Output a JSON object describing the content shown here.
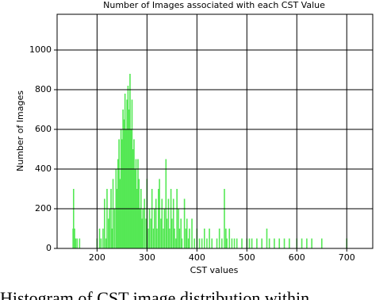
{
  "chart_data": {
    "type": "bar",
    "title": "Number of Images associated with each CST Value",
    "x_label": "CST values",
    "y_label": "Number of Images",
    "caption": "Histogram of CST image distribution within",
    "color": "#55e855",
    "grid": true,
    "x": [
      152,
      153,
      155,
      157,
      160,
      165,
      200,
      205,
      208,
      212,
      215,
      218,
      220,
      223,
      225,
      228,
      230,
      232,
      235,
      238,
      240,
      242,
      244,
      246,
      248,
      250,
      252,
      254,
      256,
      258,
      260,
      262,
      264,
      266,
      268,
      270,
      272,
      274,
      276,
      278,
      280,
      282,
      284,
      286,
      288,
      290,
      292,
      295,
      298,
      300,
      303,
      305,
      308,
      310,
      313,
      315,
      318,
      320,
      323,
      325,
      328,
      330,
      333,
      335,
      338,
      340,
      343,
      345,
      348,
      350,
      353,
      355,
      358,
      360,
      363,
      365,
      368,
      370,
      375,
      378,
      380,
      383,
      385,
      390,
      395,
      400,
      405,
      410,
      415,
      420,
      425,
      430,
      440,
      445,
      450,
      455,
      458,
      460,
      465,
      470,
      475,
      480,
      490,
      500,
      505,
      510,
      520,
      530,
      540,
      545,
      555,
      565,
      575,
      585,
      600,
      610,
      620,
      630,
      650,
      700
    ],
    "values": [
      100,
      300,
      100,
      50,
      50,
      50,
      50,
      100,
      50,
      100,
      250,
      50,
      300,
      150,
      200,
      300,
      100,
      350,
      200,
      400,
      300,
      450,
      550,
      350,
      600,
      550,
      700,
      650,
      780,
      600,
      750,
      820,
      700,
      880,
      600,
      750,
      500,
      550,
      400,
      450,
      300,
      450,
      350,
      200,
      300,
      150,
      200,
      250,
      150,
      350,
      100,
      200,
      150,
      300,
      100,
      200,
      250,
      100,
      300,
      350,
      150,
      250,
      100,
      200,
      450,
      150,
      250,
      100,
      300,
      150,
      250,
      100,
      50,
      300,
      200,
      100,
      150,
      50,
      250,
      100,
      150,
      50,
      100,
      150,
      50,
      100,
      50,
      50,
      100,
      50,
      100,
      50,
      50,
      100,
      50,
      300,
      100,
      50,
      100,
      50,
      50,
      50,
      50,
      50,
      50,
      50,
      50,
      50,
      100,
      50,
      50,
      50,
      50,
      50,
      50,
      50,
      50,
      50,
      50,
      50
    ],
    "xlim": [
      120,
      752
    ],
    "ylim": [
      0,
      1180
    ],
    "xticks": [
      200,
      300,
      400,
      500,
      600,
      700
    ],
    "yticks": [
      0,
      200,
      400,
      600,
      800,
      1000
    ]
  }
}
